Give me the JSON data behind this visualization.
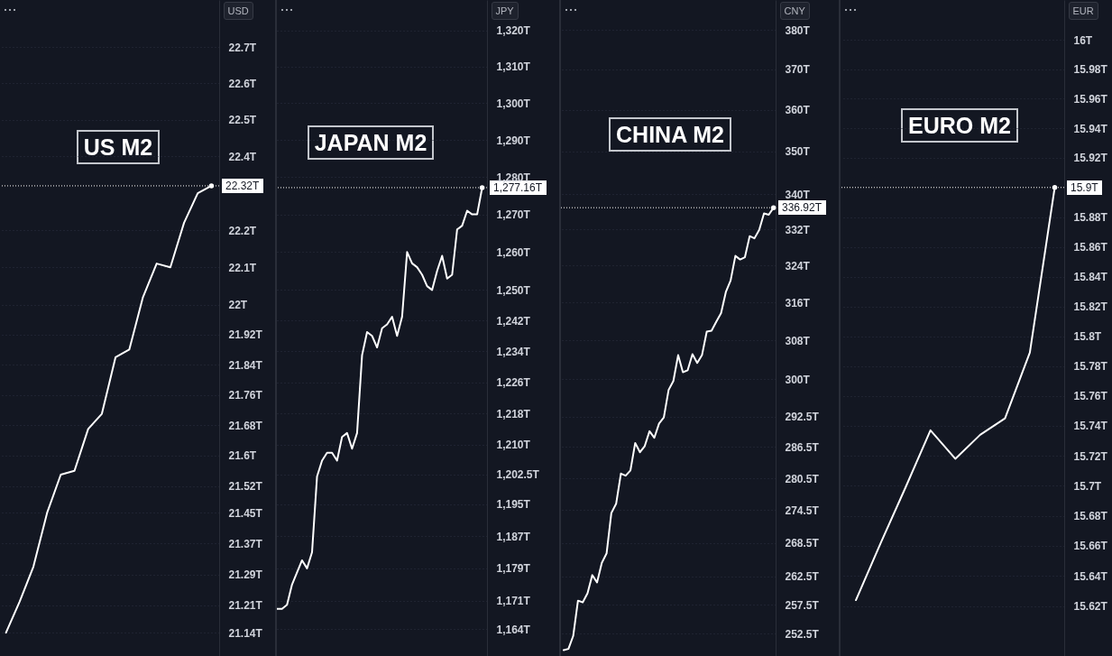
{
  "chart_data": [
    {
      "type": "line",
      "title": "US M2",
      "ylabel": "USD",
      "categories": [
        null,
        null,
        null,
        null,
        null,
        null,
        null,
        null,
        null,
        null,
        null,
        null,
        null,
        null,
        null,
        null
      ],
      "values": [
        21.14,
        21.22,
        21.31,
        21.45,
        21.55,
        21.56,
        21.67,
        21.71,
        21.86,
        21.88,
        22.02,
        22.11,
        22.1,
        22.22,
        22.3,
        22.32
      ],
      "color": "#ffffff",
      "log": true,
      "ylim": [
        21.08,
        22.83
      ],
      "yticks": [
        {
          "value": 21.14,
          "label": "21.14T"
        },
        {
          "value": 21.21,
          "label": "21.21T"
        },
        {
          "value": 21.29,
          "label": "21.29T"
        },
        {
          "value": 21.37,
          "label": "21.37T"
        },
        {
          "value": 21.45,
          "label": "21.45T"
        },
        {
          "value": 21.52,
          "label": "21.52T"
        },
        {
          "value": 21.6,
          "label": "21.6T"
        },
        {
          "value": 21.68,
          "label": "21.68T"
        },
        {
          "value": 21.76,
          "label": "21.76T"
        },
        {
          "value": 21.84,
          "label": "21.84T"
        },
        {
          "value": 21.92,
          "label": "21.92T"
        },
        {
          "value": 22,
          "label": "22T"
        },
        {
          "value": 22.1,
          "label": "22.1T"
        },
        {
          "value": 22.2,
          "label": "22.2T"
        },
        {
          "value": 22.4,
          "label": "22.4T"
        },
        {
          "value": 22.5,
          "label": "22.5T"
        },
        {
          "value": 22.6,
          "label": "22.6T"
        },
        {
          "value": 22.7,
          "label": "22.7T"
        }
      ],
      "grid": "y",
      "tick_labels": "y",
      "ref_lines": [
        {
          "axis": "y",
          "value": 22.32,
          "label": "22.32T",
          "color": "#ffffff",
          "line_style": "dotted"
        }
      ]
    },
    {
      "type": "line",
      "title": "JAPAN M2",
      "ylabel": "JPY",
      "categories": [
        null,
        null,
        null,
        null,
        null,
        null,
        null,
        null,
        null,
        null,
        null,
        null,
        null,
        null,
        null,
        null,
        null,
        null,
        null,
        null,
        null,
        null,
        null,
        null,
        null,
        null,
        null,
        null,
        null,
        null,
        null,
        null,
        null,
        null,
        null,
        null,
        null,
        null,
        null,
        null,
        null,
        null
      ],
      "values": [
        1169,
        1169,
        1170,
        1175,
        1178,
        1181,
        1179,
        1183,
        1202,
        1206,
        1208,
        1208,
        1206,
        1212,
        1213,
        1209,
        1213,
        1233,
        1239,
        1238,
        1235,
        1240,
        1241,
        1243,
        1238,
        1243,
        1260,
        1257,
        1256,
        1254,
        1251,
        1250,
        1255,
        1259,
        1253,
        1254,
        1266,
        1267,
        1271,
        1270,
        1270,
        1277.16
      ],
      "color": "#ffffff",
      "log": true,
      "ylim": [
        1157.5,
        1328.5
      ],
      "yticks": [
        {
          "value": 1164,
          "label": "1,164T"
        },
        {
          "value": 1171,
          "label": "1,171T"
        },
        {
          "value": 1179,
          "label": "1,179T"
        },
        {
          "value": 1187,
          "label": "1,187T"
        },
        {
          "value": 1195,
          "label": "1,195T"
        },
        {
          "value": 1202.5,
          "label": "1,202.5T"
        },
        {
          "value": 1210,
          "label": "1,210T"
        },
        {
          "value": 1218,
          "label": "1,218T"
        },
        {
          "value": 1226,
          "label": "1,226T"
        },
        {
          "value": 1234,
          "label": "1,234T"
        },
        {
          "value": 1242,
          "label": "1,242T"
        },
        {
          "value": 1250,
          "label": "1,250T"
        },
        {
          "value": 1260,
          "label": "1,260T"
        },
        {
          "value": 1270,
          "label": "1,270T"
        },
        {
          "value": 1280,
          "label": "1,280T"
        },
        {
          "value": 1290,
          "label": "1,290T"
        },
        {
          "value": 1300,
          "label": "1,300T"
        },
        {
          "value": 1310,
          "label": "1,310T"
        },
        {
          "value": 1320,
          "label": "1,320T"
        }
      ],
      "grid": "y",
      "tick_labels": "y",
      "ref_lines": [
        {
          "axis": "y",
          "value": 1277.16,
          "label": "1,277.16T",
          "color": "#ffffff",
          "line_style": "dotted"
        }
      ]
    },
    {
      "type": "line",
      "title": "CHINA M2",
      "ylabel": "CNY",
      "categories": [
        null,
        null,
        null,
        null,
        null,
        null,
        null,
        null,
        null,
        null,
        null,
        null,
        null,
        null,
        null,
        null,
        null,
        null,
        null,
        null,
        null,
        null,
        null,
        null,
        null,
        null,
        null,
        null,
        null,
        null,
        null,
        null,
        null,
        null,
        null,
        null,
        null,
        null,
        null,
        null,
        null,
        null,
        null,
        null,
        null
      ],
      "values": [
        249.7,
        249.9,
        252.1,
        258.2,
        257.9,
        259.5,
        262.7,
        261.4,
        264.9,
        266.6,
        274,
        275.7,
        281.4,
        281,
        282,
        287.3,
        285.5,
        286.7,
        289.6,
        288.3,
        291.1,
        292.3,
        297.8,
        299.6,
        304.9,
        301.4,
        301.8,
        305.1,
        303.3,
        304.9,
        309.8,
        310,
        311.9,
        313.7,
        318.2,
        320.7,
        326.1,
        325.3,
        325.8,
        330.5,
        330,
        331.9,
        335.6,
        335.3,
        336.92
      ],
      "color": "#ffffff",
      "log": true,
      "ylim": [
        248.7,
        387.8
      ],
      "yticks": [
        {
          "value": 252.5,
          "label": "252.5T"
        },
        {
          "value": 257.5,
          "label": "257.5T"
        },
        {
          "value": 262.5,
          "label": "262.5T"
        },
        {
          "value": 268.5,
          "label": "268.5T"
        },
        {
          "value": 274.5,
          "label": "274.5T"
        },
        {
          "value": 280.5,
          "label": "280.5T"
        },
        {
          "value": 286.5,
          "label": "286.5T"
        },
        {
          "value": 292.5,
          "label": "292.5T"
        },
        {
          "value": 300,
          "label": "300T"
        },
        {
          "value": 308,
          "label": "308T"
        },
        {
          "value": 316,
          "label": "316T"
        },
        {
          "value": 324,
          "label": "324T"
        },
        {
          "value": 332,
          "label": "332T"
        },
        {
          "value": 340,
          "label": "340T"
        },
        {
          "value": 350,
          "label": "350T"
        },
        {
          "value": 360,
          "label": "360T"
        },
        {
          "value": 370,
          "label": "370T"
        },
        {
          "value": 380,
          "label": "380T"
        }
      ],
      "grid": "y",
      "tick_labels": "y",
      "ref_lines": [
        {
          "axis": "y",
          "value": 336.92,
          "label": "336.92T",
          "color": "#ffffff",
          "line_style": "dotted"
        }
      ]
    },
    {
      "type": "line",
      "title": "EURO M2",
      "ylabel": "EUR",
      "categories": [
        null,
        null,
        null,
        null,
        null,
        null,
        null,
        null,
        null
      ],
      "values": [
        15.624,
        15.662,
        15.699,
        15.737,
        15.718,
        15.734,
        15.745,
        15.789,
        15.9
      ],
      "color": "#ffffff",
      "log": true,
      "ylim": [
        15.587,
        16.027
      ],
      "yticks": [
        {
          "value": 15.62,
          "label": "15.62T"
        },
        {
          "value": 15.64,
          "label": "15.64T"
        },
        {
          "value": 15.66,
          "label": "15.66T"
        },
        {
          "value": 15.68,
          "label": "15.68T"
        },
        {
          "value": 15.7,
          "label": "15.7T"
        },
        {
          "value": 15.72,
          "label": "15.72T"
        },
        {
          "value": 15.74,
          "label": "15.74T"
        },
        {
          "value": 15.76,
          "label": "15.76T"
        },
        {
          "value": 15.78,
          "label": "15.78T"
        },
        {
          "value": 15.8,
          "label": "15.8T"
        },
        {
          "value": 15.82,
          "label": "15.82T"
        },
        {
          "value": 15.84,
          "label": "15.84T"
        },
        {
          "value": 15.86,
          "label": "15.86T"
        },
        {
          "value": 15.88,
          "label": "15.88T"
        },
        {
          "value": 15.92,
          "label": "15.92T"
        },
        {
          "value": 15.94,
          "label": "15.94T"
        },
        {
          "value": 15.96,
          "label": "15.96T"
        },
        {
          "value": 15.98,
          "label": "15.98T"
        },
        {
          "value": 16,
          "label": "16T"
        }
      ],
      "grid": "y",
      "tick_labels": "y",
      "ref_lines": [
        {
          "axis": "y",
          "value": 15.9,
          "label": "15.9T",
          "color": "#ffffff",
          "line_style": "dotted"
        }
      ]
    }
  ]
}
